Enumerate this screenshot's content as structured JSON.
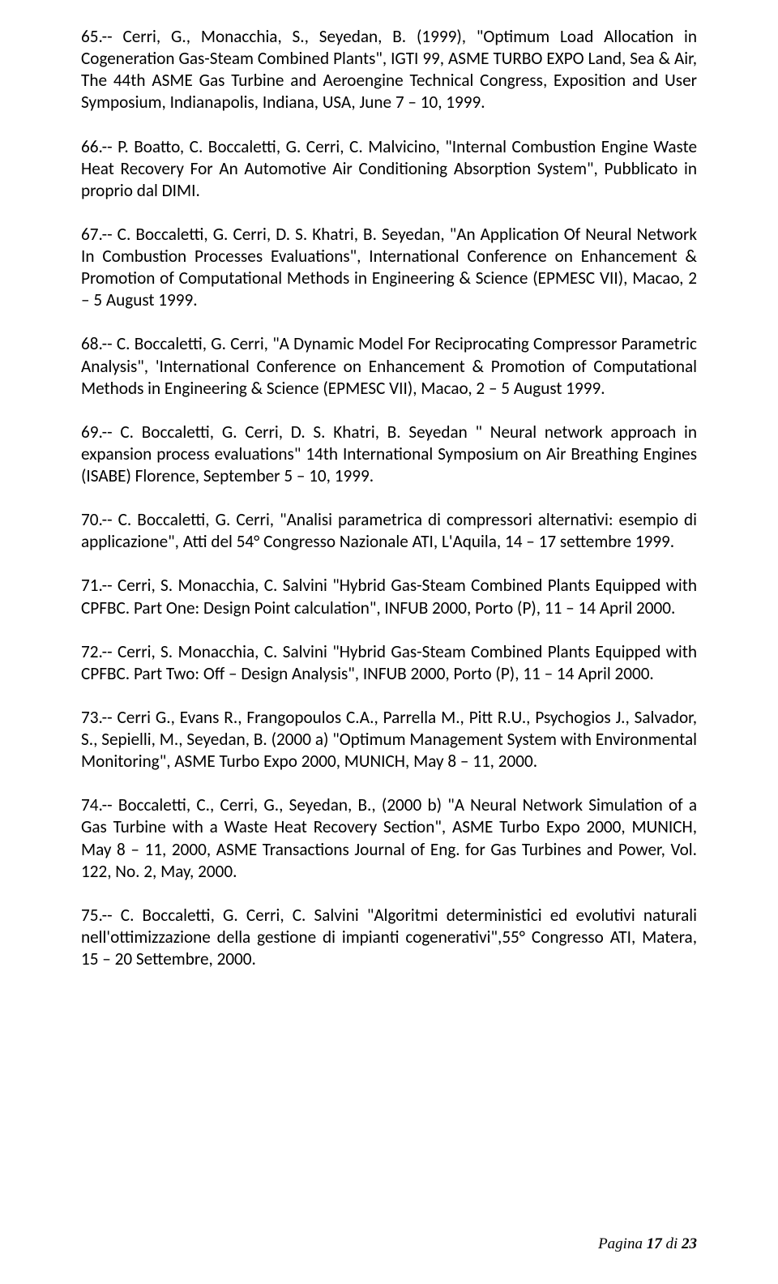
{
  "entries": [
    "65.-- Cerri, G., Monacchia, S., Seyedan, B. (1999), \"Optimum Load Allocation in Cogeneration Gas-Steam Combined Plants\", IGTI 99, ASME TURBO EXPO Land, Sea & Air, The 44th ASME Gas Turbine and Aeroengine Technical Congress, Exposition and User Symposium, Indianapolis, Indiana, USA, June 7 – 10, 1999.",
    "66.-- P. Boatto, C. Boccaletti, G. Cerri, C. Malvicino, \"Internal Combustion Engine Waste Heat Recovery For An Automotive Air Conditioning Absorption System\", Pubblicato in proprio dal DIMI.",
    "67.-- C. Boccaletti, G. Cerri, D. S. Khatri, B. Seyedan, \"An Application Of Neural Network In Combustion Processes Evaluations\", International Conference on Enhancement & Promotion of Computational Methods in Engineering & Science (EPMESC VII), Macao, 2 – 5 August 1999.",
    "68.-- C. Boccaletti, G. Cerri, \"A Dynamic Model For Reciprocating Compressor Parametric Analysis\", 'International Conference on Enhancement & Promotion of Computational Methods in Engineering & Science (EPMESC VII), Macao, 2 – 5 August 1999.",
    "69.-- C. Boccaletti, G. Cerri, D. S. Khatri, B. Seyedan \" Neural network approach in expansion process evaluations\" 14th International Symposium on Air Breathing Engines (ISABE) Florence, September 5  – 10, 1999.",
    "70.-- C. Boccaletti, G. Cerri, \"Analisi parametrica di compressori alternativi: esempio di applicazione\", Atti del 54° Congresso Nazionale ATI, L'Aquila, 14 – 17 settembre 1999.",
    "71.-- Cerri, S. Monacchia, C. Salvini \"Hybrid Gas-Steam Combined Plants Equipped with CPFBC. Part One: Design Point calculation\", INFUB 2000, Porto (P), 11 – 14 April 2000.",
    "72.-- Cerri, S. Monacchia, C. Salvini \"Hybrid Gas-Steam Combined Plants Equipped with CPFBC. Part Two: Off – Design Analysis\", INFUB 2000, Porto (P), 11 – 14 April 2000.",
    "73.-- Cerri G., Evans R., Frangopoulos C.A., Parrella M., Pitt R.U., Psychogios  J., Salvador, S., Sepielli, M., Seyedan, B. (2000 a) \"Optimum Management System with Environmental Monitoring\", ASME Turbo Expo 2000, MUNICH, May 8 – 11, 2000.",
    "74.-- Boccaletti, C., Cerri, G., Seyedan, B., (2000 b) \"A Neural Network Simulation of a Gas Turbine with a Waste Heat Recovery Section\", ASME Turbo Expo 2000, MUNICH, May 8 – 11, 2000, ASME Transactions  Journal of Eng. for Gas Turbines and Power,  Vol.  122,  No. 2, May, 2000.",
    "75.-- C. Boccaletti, G. Cerri, C. Salvini \"Algoritmi deterministici ed evolutivi naturali nell'ottimizzazione della gestione di impianti cogenerativi\",55° Congresso ATI, Matera, 15 – 20 Settembre, 2000."
  ],
  "footer": {
    "prefix": "Pagina ",
    "current": "17",
    "sep": " di ",
    "total": "23"
  }
}
